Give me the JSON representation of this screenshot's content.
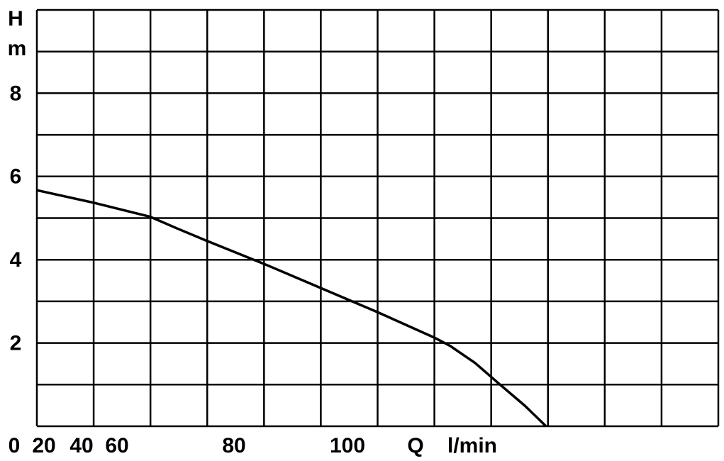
{
  "chart_data": {
    "type": "line",
    "y_label": "H",
    "y_unit": "m",
    "x_label": "Q",
    "x_unit": "l/min",
    "ylim": [
      0,
      10
    ],
    "yticks": [
      2,
      4,
      6,
      8
    ],
    "xticks": [
      0,
      20,
      40,
      60,
      80,
      100
    ],
    "grid": true,
    "series": [
      {
        "color": "#000000",
        "x": [
          15.2,
          46.8,
          65.7,
          70.3,
          75.4,
          85.3,
          95.3,
          105.3,
          115.3,
          118.1,
          122.5,
          126.9,
          131.3,
          135
        ],
        "values": [
          5.67,
          5.37,
          5.03,
          4.75,
          4.45,
          3.9,
          3.32,
          2.74,
          2.13,
          1.93,
          1.52,
          1.0,
          0.49,
          0
        ]
      }
    ]
  }
}
